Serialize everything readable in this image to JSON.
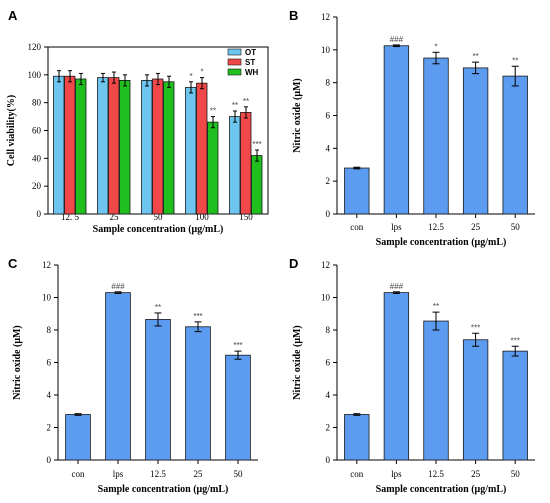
{
  "chart_data": [
    {
      "panel": "A",
      "type": "bar",
      "ylabel": "Cell viability(%)",
      "xlabel": "Sample concentration (μg/mL)",
      "ylim": [
        0,
        120
      ],
      "yticks": [
        0,
        20,
        40,
        60,
        80,
        100,
        120
      ],
      "categories": [
        "12. 5",
        "25",
        "50",
        "100",
        "150"
      ],
      "series": [
        {
          "name": "OT",
          "color": "#6ec6f0",
          "values": [
            99,
            98,
            96,
            91,
            70
          ],
          "errors": [
            4,
            3,
            4,
            4,
            4
          ],
          "labels": [
            "",
            "",
            "",
            "*",
            "**"
          ]
        },
        {
          "name": "ST",
          "color": "#f04848",
          "values": [
            99,
            98,
            97,
            94,
            73
          ],
          "errors": [
            4,
            4,
            4,
            4,
            4
          ],
          "labels": [
            "",
            "",
            "",
            "*",
            "**"
          ]
        },
        {
          "name": "WH",
          "color": "#1fbf1f",
          "values": [
            97,
            96,
            95,
            66,
            42
          ],
          "errors": [
            4,
            4,
            4,
            4,
            4
          ],
          "labels": [
            "",
            "",
            "",
            "**",
            "***"
          ]
        }
      ],
      "legend_position": "top-right"
    },
    {
      "panel": "B",
      "type": "bar",
      "ylabel": "Nitric oxide (μM)",
      "xlabel": "Sample concentration (μg/mL)",
      "ylim": [
        0,
        12
      ],
      "yticks": [
        0,
        2,
        4,
        6,
        8,
        10,
        12
      ],
      "categories": [
        "con",
        "lps",
        "12.5",
        "25",
        "50"
      ],
      "series": [
        {
          "color": "#5b9bf0",
          "values": [
            2.8,
            10.25,
            9.5,
            8.9,
            8.4
          ],
          "errors": [
            0.05,
            0.05,
            0.35,
            0.35,
            0.6
          ],
          "labels": [
            "",
            "###",
            "*",
            "**",
            "**"
          ]
        }
      ]
    },
    {
      "panel": "C",
      "type": "bar",
      "ylabel": "Nitric oxide (μM)",
      "xlabel": "Sample concentration (μg/mL)",
      "ylim": [
        0,
        12
      ],
      "yticks": [
        0,
        2,
        4,
        6,
        8,
        10,
        12
      ],
      "categories": [
        "con",
        "lps",
        "12.5",
        "25",
        "50"
      ],
      "series": [
        {
          "color": "#5b9bf0",
          "values": [
            2.8,
            10.3,
            8.65,
            8.2,
            6.45
          ],
          "errors": [
            0.05,
            0.05,
            0.4,
            0.3,
            0.25
          ],
          "labels": [
            "",
            "###",
            "**",
            "***",
            "***"
          ]
        }
      ]
    },
    {
      "panel": "D",
      "type": "bar",
      "ylabel": "Nitric oxide (μM)",
      "xlabel": "Sample concentration (μg/mL)",
      "ylim": [
        0,
        12
      ],
      "yticks": [
        0,
        2,
        4,
        6,
        8,
        10,
        12
      ],
      "categories": [
        "con",
        "lps",
        "12.5",
        "25",
        "50"
      ],
      "series": [
        {
          "color": "#5b9bf0",
          "values": [
            2.8,
            10.3,
            8.55,
            7.4,
            6.7
          ],
          "errors": [
            0.05,
            0.05,
            0.55,
            0.4,
            0.3
          ],
          "labels": [
            "",
            "###",
            "**",
            "***",
            "***"
          ]
        }
      ]
    }
  ]
}
